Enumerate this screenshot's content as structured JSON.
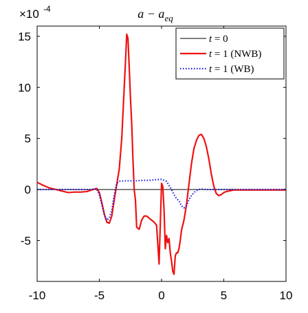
{
  "chart_data": {
    "type": "line",
    "title": "a − a",
    "title_subscript": "eq",
    "y_multiplier": "×10",
    "y_multiplier_exponent": "-4",
    "xlim": [
      -10,
      10
    ],
    "ylim": [
      -9,
      16
    ],
    "x_ticks": [
      -10,
      -5,
      0,
      5,
      10
    ],
    "y_ticks": [
      -5,
      0,
      5,
      10,
      15
    ],
    "x_tick_labels": [
      "-10",
      "-5",
      "0",
      "5",
      "10"
    ],
    "y_tick_labels": [
      "-5",
      "0",
      "5",
      "10",
      "15"
    ],
    "legend_position": "top-right",
    "grid": false,
    "series": [
      {
        "name_var": "t",
        "name_rest": " = 0",
        "name_suffix": "",
        "color": "#000000",
        "style": "solid",
        "x": [
          -10,
          10
        ],
        "y": [
          0,
          0
        ]
      },
      {
        "name_var": "t",
        "name_rest": " = 1 ",
        "name_suffix": "(NWB)",
        "color": "#ee1111",
        "style": "solid",
        "x": [
          -10,
          -9.5,
          -9,
          -8.5,
          -8,
          -7.5,
          -7,
          -6.5,
          -6,
          -5.5,
          -5.2,
          -5,
          -4.8,
          -4.6,
          -4.4,
          -4.2,
          -4.0,
          -3.8,
          -3.6,
          -3.4,
          -3.2,
          -3.0,
          -2.9,
          -2.8,
          -2.7,
          -2.6,
          -2.5,
          -2.4,
          -2.3,
          -2.2,
          -2.1,
          -2.0,
          -1.8,
          -1.6,
          -1.4,
          -1.2,
          -1.0,
          -0.8,
          -0.6,
          -0.4,
          -0.2,
          0.0,
          0.1,
          0.2,
          0.3,
          0.4,
          0.5,
          0.6,
          0.7,
          0.8,
          0.9,
          1.0,
          1.1,
          1.2,
          1.3,
          1.4,
          1.5,
          1.6,
          1.8,
          2.0,
          2.2,
          2.4,
          2.6,
          2.8,
          3.0,
          3.2,
          3.4,
          3.6,
          3.8,
          4.0,
          4.2,
          4.4,
          4.6,
          4.8,
          5.0,
          5.2,
          5.4,
          5.6,
          5.8,
          6.0,
          6.2,
          6.4,
          6.6,
          7.0,
          7.5,
          8,
          8.5,
          9,
          9.5,
          10
        ],
        "y": [
          0.7,
          0.4,
          0.15,
          0.0,
          -0.15,
          -0.3,
          -0.25,
          -0.25,
          -0.2,
          0.0,
          0.1,
          -0.3,
          -1.3,
          -2.4,
          -3.2,
          -3.3,
          -2.6,
          -1.0,
          0.5,
          2.0,
          5.0,
          10.0,
          12.5,
          15.2,
          14.8,
          12.0,
          9.0,
          6.5,
          3.0,
          0.0,
          -1.0,
          -3.7,
          -3.9,
          -3.0,
          -2.6,
          -2.6,
          -2.8,
          -3.0,
          -3.2,
          -3.5,
          -7.3,
          0.6,
          0.3,
          -2.0,
          -5.8,
          -4.5,
          -5.2,
          -4.8,
          -6.2,
          -7.0,
          -8.0,
          -8.3,
          -6.5,
          -6.2,
          -6.2,
          -5.8,
          -5.0,
          -4.0,
          -3.0,
          -1.5,
          0.5,
          2.5,
          4.0,
          4.8,
          5.3,
          5.4,
          5.0,
          4.2,
          3.0,
          1.5,
          0.3,
          -0.4,
          -0.6,
          -0.5,
          -0.3,
          -0.2,
          -0.15,
          -0.1,
          -0.05,
          -0.05,
          -0.05,
          -0.05,
          -0.05,
          -0.05,
          -0.05,
          -0.05,
          -0.05,
          -0.05,
          -0.05,
          -0.05
        ]
      },
      {
        "name_var": "t",
        "name_rest": " = 1 ",
        "name_suffix": "(WB)",
        "color": "#1a1ae6",
        "style": "dotted",
        "x": [
          -10,
          -9,
          -8,
          -7,
          -6,
          -5.6,
          -5.4,
          -5.2,
          -5.0,
          -4.8,
          -4.6,
          -4.4,
          -4.2,
          -4.0,
          -3.8,
          -3.6,
          -3.4,
          -3.0,
          -2.5,
          -2.0,
          -1.5,
          -1.0,
          -0.5,
          0.0,
          0.4,
          0.8,
          1.0,
          1.2,
          1.4,
          1.6,
          1.8,
          2.0,
          2.2,
          2.4,
          2.6,
          2.8,
          3.0,
          3.2,
          3.6,
          4.0,
          5.0,
          6.0,
          7.0,
          8.0,
          9.0,
          10
        ],
        "y": [
          0.0,
          0.0,
          0.0,
          0.0,
          0.0,
          0.0,
          0.1,
          0.0,
          -0.5,
          -1.5,
          -2.5,
          -3.0,
          -2.8,
          -2.0,
          -0.5,
          0.6,
          0.8,
          0.85,
          0.85,
          0.85,
          0.9,
          0.9,
          0.95,
          1.0,
          0.8,
          0.0,
          -0.5,
          -0.9,
          -1.1,
          -1.6,
          -1.8,
          -1.6,
          -1.0,
          -0.6,
          -0.3,
          -0.1,
          0.0,
          0.05,
          0.0,
          0.0,
          0.0,
          0.0,
          0.0,
          0.0,
          0.0,
          0.0
        ]
      }
    ]
  }
}
